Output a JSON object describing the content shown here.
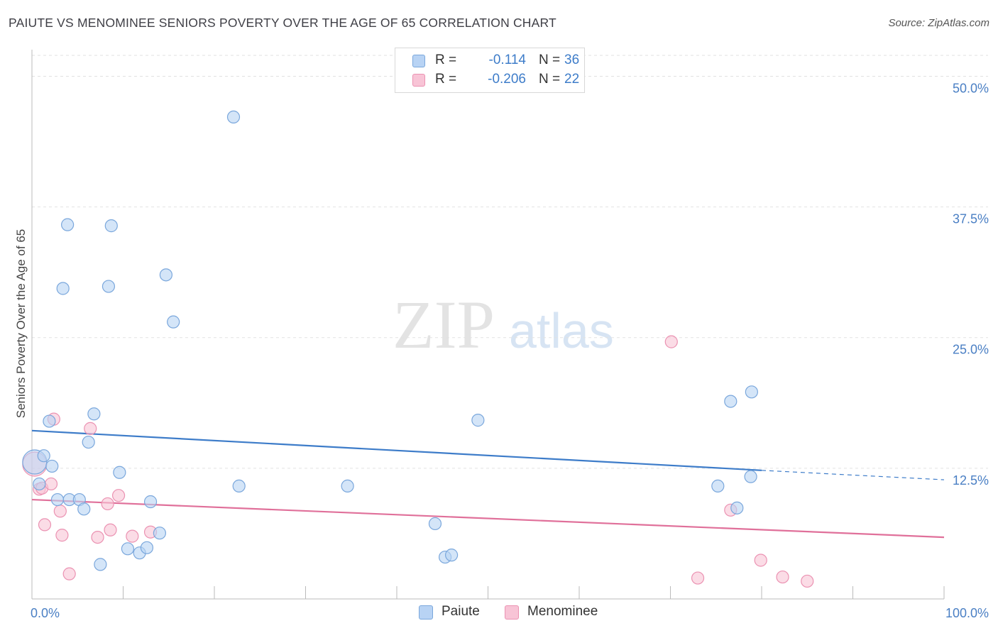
{
  "title": "PAIUTE VS MENOMINEE SENIORS POVERTY OVER THE AGE OF 65 CORRELATION CHART",
  "source": "Source: ZipAtlas.com",
  "watermark": {
    "zip": "ZIP",
    "atlas": "atlas"
  },
  "colors": {
    "paiute_fill": "#b8d3f4",
    "paiute_stroke": "#7aa7dc",
    "paiute_line": "#3d7cc9",
    "menominee_fill": "#f8c4d6",
    "menominee_stroke": "#eb92b2",
    "menominee_line": "#e0709a",
    "tick_label": "#4a7fc4",
    "grid": "#e2e2e2"
  },
  "legend": {
    "rows": [
      {
        "series": "Paiute",
        "r_label": "R =",
        "r_value": "-0.114",
        "n_label": "N =",
        "n_value": "36"
      },
      {
        "series": "Menominee",
        "r_label": "R =",
        "r_value": "-0.206",
        "n_label": "N =",
        "n_value": "22"
      }
    ]
  },
  "bottom_legend": [
    "Paiute",
    "Menominee"
  ],
  "chart_data": {
    "type": "scatter",
    "title": "PAIUTE VS MENOMINEE SENIORS POVERTY OVER THE AGE OF 65 CORRELATION CHART",
    "xlabel": "",
    "ylabel": "Seniors Poverty Over the Age of 65",
    "xlim": [
      0,
      100
    ],
    "ylim": [
      0,
      52
    ],
    "x_ticks": [
      0,
      10,
      20,
      30,
      40,
      50,
      60,
      70,
      80,
      90,
      100
    ],
    "x_tick_labels": [
      {
        "value": 0,
        "label": "0.0%"
      },
      {
        "value": 100,
        "label": "100.0%"
      }
    ],
    "y_ticks": [
      {
        "value": 12.5,
        "label": "12.5%"
      },
      {
        "value": 25.0,
        "label": "25.0%"
      },
      {
        "value": 37.5,
        "label": "37.5%"
      },
      {
        "value": 50.0,
        "label": "50.0%"
      }
    ],
    "grid": true,
    "legend_position": "top-center",
    "series": [
      {
        "name": "Paiute",
        "r": -0.114,
        "n": 36,
        "trend": {
          "x0": 0,
          "y0": 16.1,
          "x1": 80,
          "y1": 12.3,
          "dashed_to_x": 100,
          "dashed_to_y": 11.4
        },
        "points": [
          {
            "x": 0.3,
            "y": 13.1,
            "big": true
          },
          {
            "x": 0.8,
            "y": 11.0
          },
          {
            "x": 1.3,
            "y": 13.7
          },
          {
            "x": 1.9,
            "y": 17.0
          },
          {
            "x": 2.2,
            "y": 12.7
          },
          {
            "x": 2.8,
            "y": 9.5
          },
          {
            "x": 3.4,
            "y": 29.7
          },
          {
            "x": 3.9,
            "y": 35.8
          },
          {
            "x": 4.1,
            "y": 9.5
          },
          {
            "x": 5.2,
            "y": 9.5
          },
          {
            "x": 5.7,
            "y": 8.6
          },
          {
            "x": 6.2,
            "y": 15.0
          },
          {
            "x": 6.8,
            "y": 17.7
          },
          {
            "x": 7.5,
            "y": 3.3
          },
          {
            "x": 8.4,
            "y": 29.9
          },
          {
            "x": 8.7,
            "y": 35.7
          },
          {
            "x": 9.6,
            "y": 12.1
          },
          {
            "x": 10.5,
            "y": 4.8
          },
          {
            "x": 11.8,
            "y": 4.4
          },
          {
            "x": 12.6,
            "y": 4.9
          },
          {
            "x": 13.0,
            "y": 9.3
          },
          {
            "x": 14.0,
            "y": 6.3
          },
          {
            "x": 14.7,
            "y": 31.0
          },
          {
            "x": 15.5,
            "y": 26.5
          },
          {
            "x": 22.1,
            "y": 46.1
          },
          {
            "x": 22.7,
            "y": 10.8
          },
          {
            "x": 34.6,
            "y": 10.8
          },
          {
            "x": 44.2,
            "y": 7.2
          },
          {
            "x": 45.3,
            "y": 4.0
          },
          {
            "x": 46.0,
            "y": 4.2
          },
          {
            "x": 48.9,
            "y": 17.1
          },
          {
            "x": 75.2,
            "y": 10.8
          },
          {
            "x": 77.3,
            "y": 8.7
          },
          {
            "x": 78.8,
            "y": 11.7
          },
          {
            "x": 76.6,
            "y": 18.9
          },
          {
            "x": 78.9,
            "y": 19.8
          }
        ]
      },
      {
        "name": "Menominee",
        "r": -0.206,
        "n": 22,
        "trend": {
          "x0": 0,
          "y0": 9.5,
          "x1": 100,
          "y1": 5.9
        },
        "points": [
          {
            "x": 0.3,
            "y": 12.9,
            "big": true
          },
          {
            "x": 0.8,
            "y": 10.5
          },
          {
            "x": 1.1,
            "y": 10.6
          },
          {
            "x": 1.4,
            "y": 7.1
          },
          {
            "x": 2.1,
            "y": 11.0
          },
          {
            "x": 2.4,
            "y": 17.2
          },
          {
            "x": 3.1,
            "y": 8.4
          },
          {
            "x": 3.3,
            "y": 6.1
          },
          {
            "x": 4.1,
            "y": 2.4
          },
          {
            "x": 6.4,
            "y": 16.3
          },
          {
            "x": 7.2,
            "y": 5.9
          },
          {
            "x": 8.3,
            "y": 9.1
          },
          {
            "x": 8.6,
            "y": 6.6
          },
          {
            "x": 9.5,
            "y": 9.9
          },
          {
            "x": 11.0,
            "y": 6.0
          },
          {
            "x": 13.0,
            "y": 6.4
          },
          {
            "x": 70.1,
            "y": 24.6
          },
          {
            "x": 73.0,
            "y": 2.0
          },
          {
            "x": 76.6,
            "y": 8.5
          },
          {
            "x": 79.9,
            "y": 3.7
          },
          {
            "x": 82.3,
            "y": 2.1
          },
          {
            "x": 85.0,
            "y": 1.7
          }
        ]
      }
    ]
  }
}
